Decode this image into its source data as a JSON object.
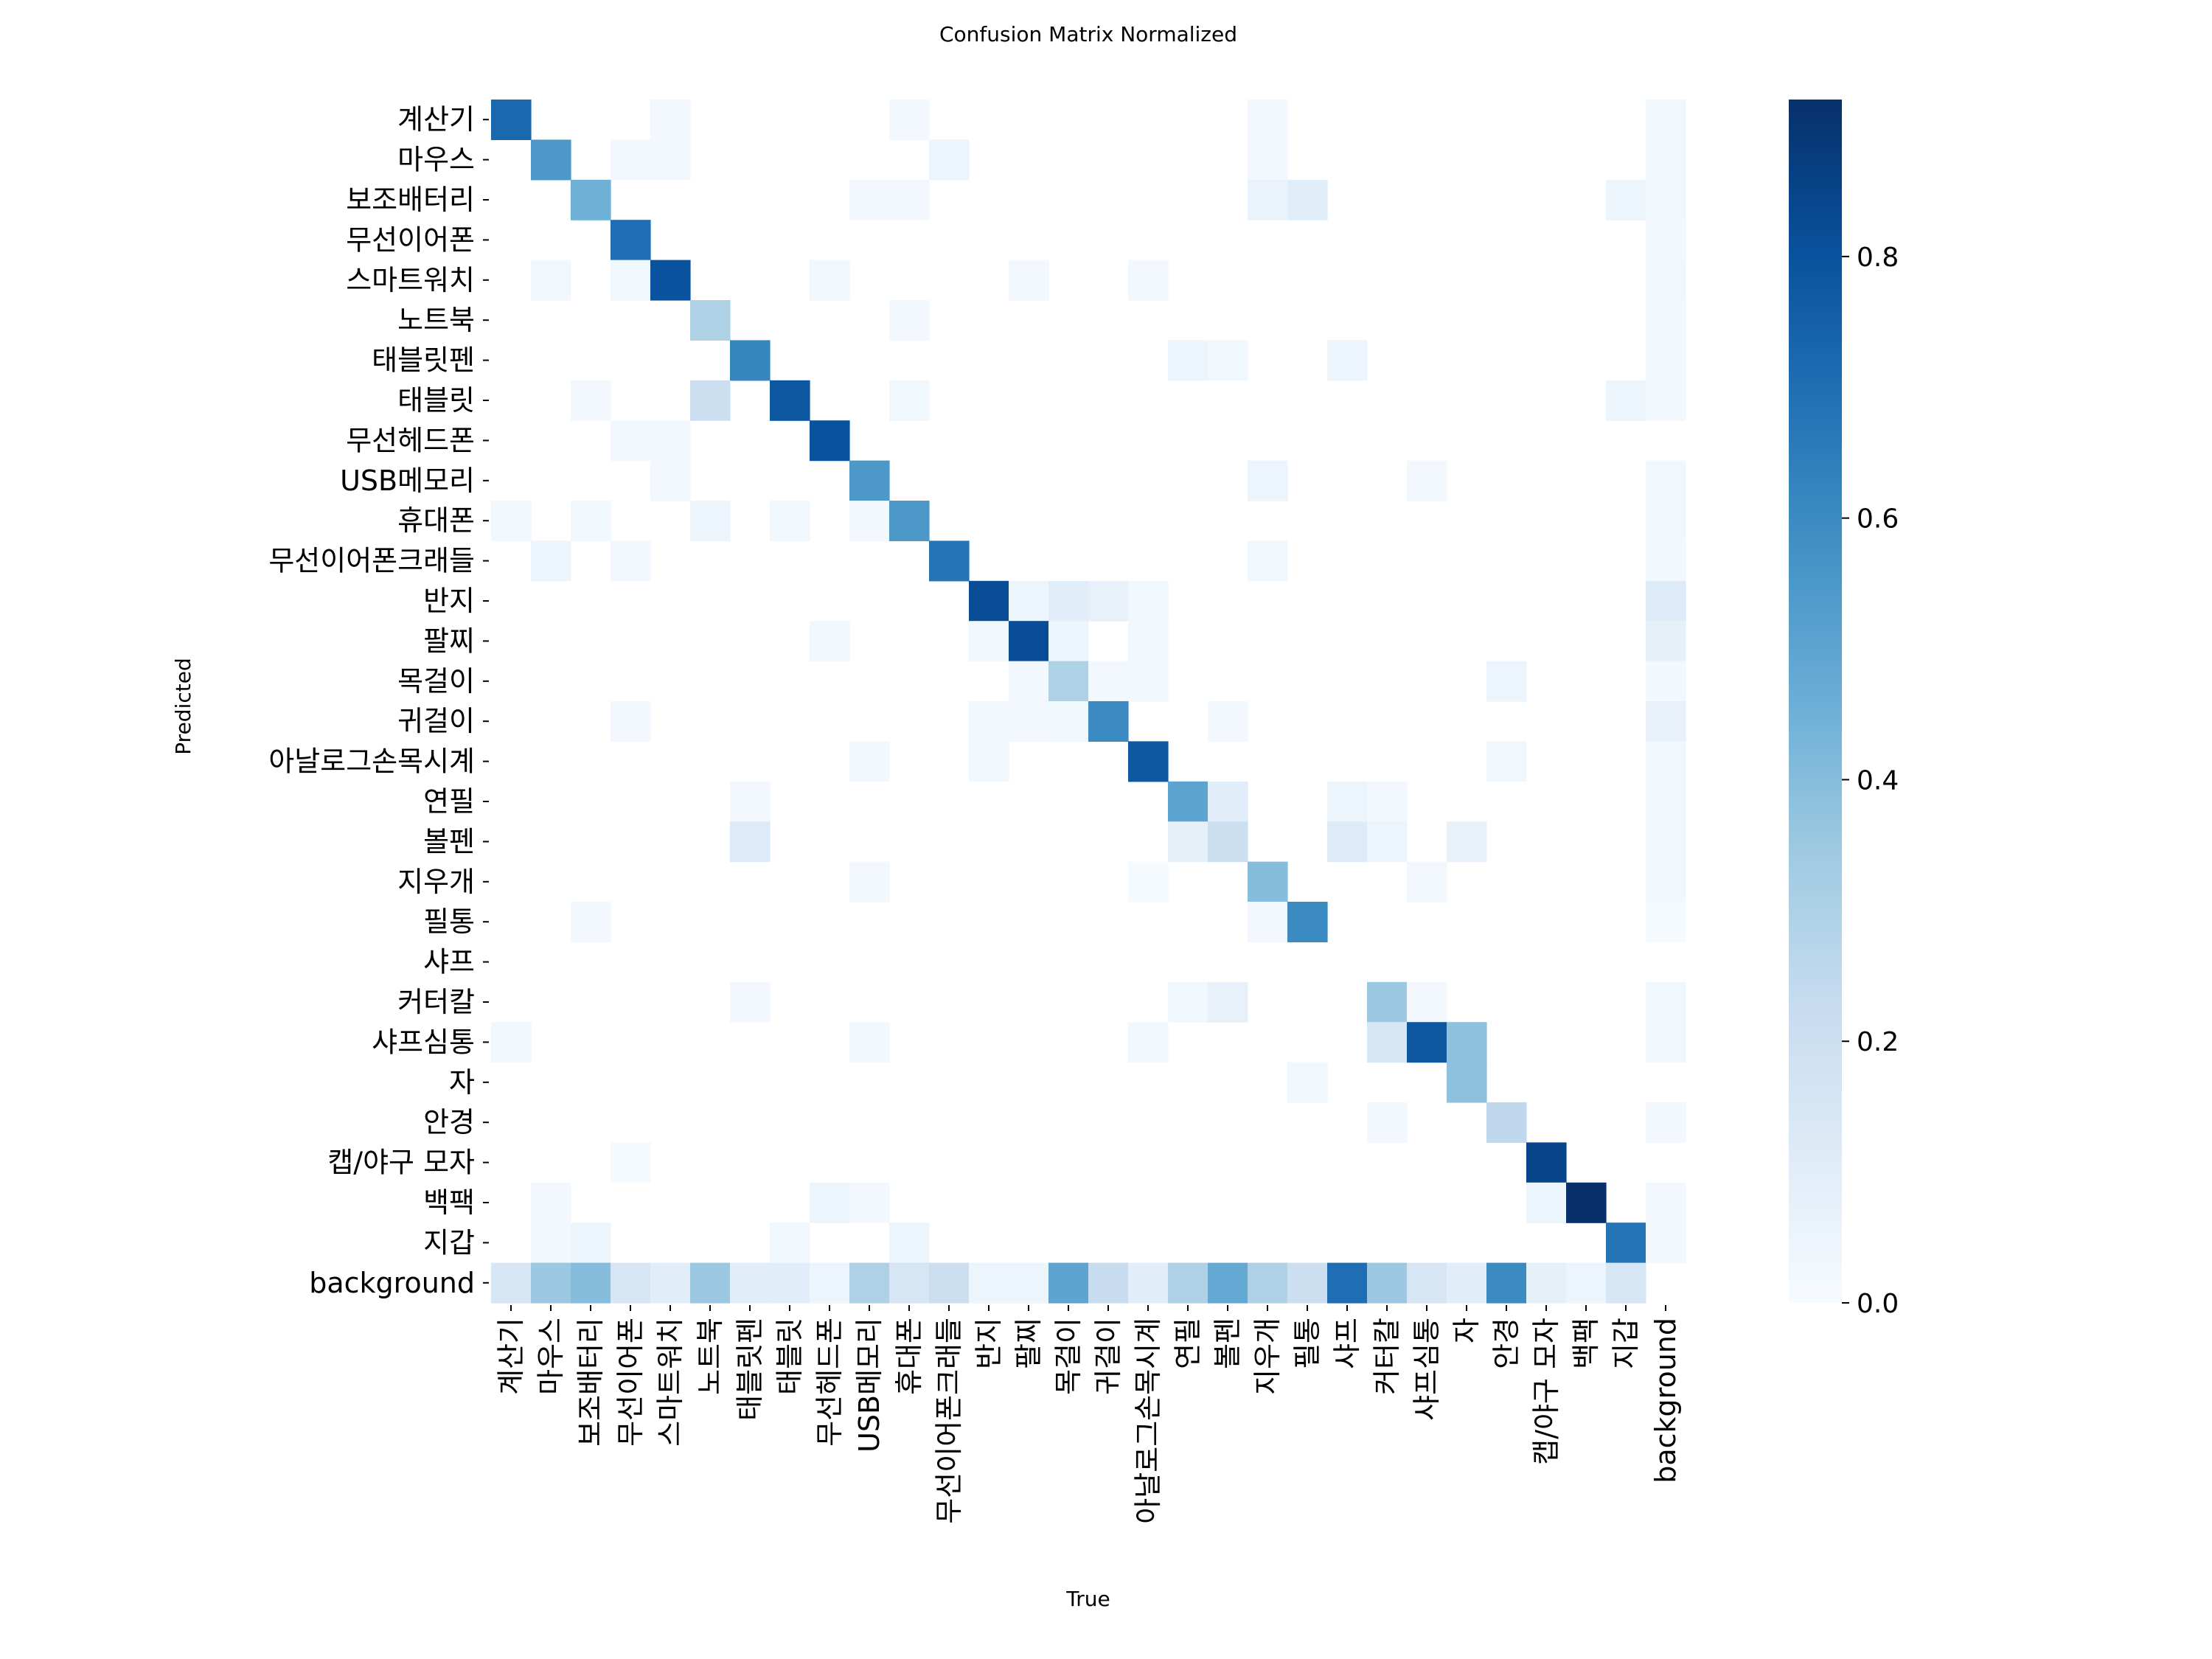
{
  "chart_data": {
    "type": "heatmap",
    "title": "Confusion Matrix Normalized",
    "xlabel": "True",
    "ylabel": "Predicted",
    "labels": [
      "계산기",
      "마우스",
      "보조배터리",
      "무선이어폰",
      "스마트워치",
      "노트북",
      "태블릿펜",
      "태블릿",
      "무선헤드폰",
      "USB메모리",
      "휴대폰",
      "무선이어폰크래들",
      "반지",
      "팔찌",
      "목걸이",
      "귀걸이",
      "아날로그손목시계",
      "연필",
      "볼펜",
      "지우개",
      "필통",
      "샤프",
      "커터칼",
      "샤프심통",
      "자",
      "안경",
      "캡/야구 모자",
      "백팩",
      "지갑",
      "background"
    ],
    "colorbar": {
      "min": 0.0,
      "max": 0.92,
      "ticks": [
        0.0,
        0.2,
        0.4,
        0.6,
        0.8
      ],
      "tick_labels": [
        "0.0",
        "0.2",
        "0.4",
        "0.6",
        "0.8"
      ]
    },
    "colormap": "Blues",
    "colors": {
      "low": "#f7fbff",
      "high": "#08306b"
    },
    "cells": [
      [
        0,
        0,
        0.72
      ],
      [
        0,
        4,
        0.02
      ],
      [
        0,
        10,
        0.02
      ],
      [
        0,
        19,
        0.02
      ],
      [
        0,
        29,
        0.03
      ],
      [
        1,
        1,
        0.55
      ],
      [
        1,
        3,
        0.02
      ],
      [
        1,
        4,
        0.02
      ],
      [
        1,
        11,
        0.05
      ],
      [
        1,
        19,
        0.02
      ],
      [
        1,
        29,
        0.03
      ],
      [
        2,
        2,
        0.45
      ],
      [
        2,
        9,
        0.02
      ],
      [
        2,
        10,
        0.02
      ],
      [
        2,
        19,
        0.06
      ],
      [
        2,
        20,
        0.1
      ],
      [
        2,
        28,
        0.05
      ],
      [
        2,
        29,
        0.03
      ],
      [
        3,
        3,
        0.7
      ],
      [
        3,
        29,
        0.02
      ],
      [
        4,
        1,
        0.03
      ],
      [
        4,
        3,
        0.03
      ],
      [
        4,
        4,
        0.8
      ],
      [
        4,
        8,
        0.03
      ],
      [
        4,
        13,
        0.02
      ],
      [
        4,
        16,
        0.02
      ],
      [
        4,
        29,
        0.03
      ],
      [
        5,
        5,
        0.3
      ],
      [
        5,
        10,
        0.02
      ],
      [
        5,
        29,
        0.02
      ],
      [
        6,
        6,
        0.62
      ],
      [
        6,
        17,
        0.05
      ],
      [
        6,
        18,
        0.03
      ],
      [
        6,
        21,
        0.05
      ],
      [
        6,
        29,
        0.02
      ],
      [
        7,
        2,
        0.02
      ],
      [
        7,
        5,
        0.2
      ],
      [
        7,
        7,
        0.78
      ],
      [
        7,
        10,
        0.03
      ],
      [
        7,
        28,
        0.05
      ],
      [
        7,
        29,
        0.02
      ],
      [
        8,
        3,
        0.02
      ],
      [
        8,
        4,
        0.02
      ],
      [
        8,
        8,
        0.8
      ],
      [
        9,
        4,
        0.02
      ],
      [
        9,
        9,
        0.55
      ],
      [
        9,
        19,
        0.05
      ],
      [
        9,
        23,
        0.02
      ],
      [
        9,
        29,
        0.03
      ],
      [
        10,
        0,
        0.03
      ],
      [
        10,
        2,
        0.03
      ],
      [
        10,
        5,
        0.05
      ],
      [
        10,
        7,
        0.03
      ],
      [
        10,
        9,
        0.02
      ],
      [
        10,
        10,
        0.55
      ],
      [
        10,
        29,
        0.03
      ],
      [
        11,
        1,
        0.05
      ],
      [
        11,
        3,
        0.02
      ],
      [
        11,
        11,
        0.68
      ],
      [
        11,
        19,
        0.03
      ],
      [
        11,
        29,
        0.02
      ],
      [
        12,
        12,
        0.82
      ],
      [
        12,
        13,
        0.05
      ],
      [
        12,
        14,
        0.1
      ],
      [
        12,
        15,
        0.07
      ],
      [
        12,
        16,
        0.03
      ],
      [
        12,
        29,
        0.12
      ],
      [
        13,
        8,
        0.03
      ],
      [
        13,
        12,
        0.03
      ],
      [
        13,
        13,
        0.82
      ],
      [
        13,
        14,
        0.05
      ],
      [
        13,
        16,
        0.02
      ],
      [
        13,
        29,
        0.08
      ],
      [
        14,
        13,
        0.02
      ],
      [
        14,
        14,
        0.3
      ],
      [
        14,
        15,
        0.02
      ],
      [
        14,
        16,
        0.02
      ],
      [
        14,
        25,
        0.05
      ],
      [
        14,
        29,
        0.02
      ],
      [
        15,
        3,
        0.02
      ],
      [
        15,
        12,
        0.03
      ],
      [
        15,
        13,
        0.02
      ],
      [
        15,
        14,
        0.03
      ],
      [
        15,
        15,
        0.6
      ],
      [
        15,
        18,
        0.02
      ],
      [
        15,
        29,
        0.07
      ],
      [
        16,
        9,
        0.02
      ],
      [
        16,
        12,
        0.03
      ],
      [
        16,
        16,
        0.78
      ],
      [
        16,
        25,
        0.03
      ],
      [
        16,
        29,
        0.03
      ],
      [
        17,
        6,
        0.02
      ],
      [
        17,
        17,
        0.5
      ],
      [
        17,
        18,
        0.1
      ],
      [
        17,
        21,
        0.05
      ],
      [
        17,
        22,
        0.02
      ],
      [
        17,
        29,
        0.03
      ],
      [
        18,
        6,
        0.12
      ],
      [
        18,
        17,
        0.08
      ],
      [
        18,
        18,
        0.2
      ],
      [
        18,
        21,
        0.12
      ],
      [
        18,
        22,
        0.05
      ],
      [
        18,
        24,
        0.07
      ],
      [
        18,
        29,
        0.03
      ],
      [
        19,
        9,
        0.02
      ],
      [
        19,
        16,
        0.01
      ],
      [
        19,
        19,
        0.4
      ],
      [
        19,
        23,
        0.02
      ],
      [
        19,
        29,
        0.03
      ],
      [
        20,
        2,
        0.02
      ],
      [
        20,
        19,
        0.02
      ],
      [
        20,
        20,
        0.6
      ],
      [
        20,
        29,
        0.01
      ],
      [
        22,
        6,
        0.02
      ],
      [
        22,
        17,
        0.03
      ],
      [
        22,
        18,
        0.07
      ],
      [
        22,
        22,
        0.35
      ],
      [
        22,
        23,
        0.02
      ],
      [
        22,
        29,
        0.03
      ],
      [
        23,
        0,
        0.03
      ],
      [
        23,
        9,
        0.02
      ],
      [
        23,
        16,
        0.02
      ],
      [
        23,
        22,
        0.15
      ],
      [
        23,
        23,
        0.78
      ],
      [
        23,
        24,
        0.38
      ],
      [
        23,
        29,
        0.03
      ],
      [
        24,
        20,
        0.03
      ],
      [
        24,
        24,
        0.38
      ],
      [
        25,
        22,
        0.02
      ],
      [
        25,
        25,
        0.25
      ],
      [
        25,
        29,
        0.02
      ],
      [
        26,
        3,
        0.01
      ],
      [
        26,
        26,
        0.85
      ],
      [
        27,
        1,
        0.02
      ],
      [
        27,
        8,
        0.05
      ],
      [
        27,
        9,
        0.02
      ],
      [
        27,
        26,
        0.05
      ],
      [
        27,
        27,
        0.92
      ],
      [
        27,
        29,
        0.02
      ],
      [
        28,
        1,
        0.02
      ],
      [
        28,
        2,
        0.05
      ],
      [
        28,
        7,
        0.03
      ],
      [
        28,
        10,
        0.05
      ],
      [
        28,
        28,
        0.68
      ],
      [
        28,
        29,
        0.02
      ],
      [
        29,
        0,
        0.15
      ],
      [
        29,
        1,
        0.35
      ],
      [
        29,
        2,
        0.4
      ],
      [
        29,
        3,
        0.15
      ],
      [
        29,
        4,
        0.1
      ],
      [
        29,
        5,
        0.35
      ],
      [
        29,
        6,
        0.1
      ],
      [
        29,
        7,
        0.1
      ],
      [
        29,
        8,
        0.05
      ],
      [
        29,
        9,
        0.3
      ],
      [
        29,
        10,
        0.15
      ],
      [
        29,
        11,
        0.2
      ],
      [
        29,
        12,
        0.05
      ],
      [
        29,
        13,
        0.05
      ],
      [
        29,
        14,
        0.5
      ],
      [
        29,
        15,
        0.22
      ],
      [
        29,
        16,
        0.1
      ],
      [
        29,
        17,
        0.3
      ],
      [
        29,
        18,
        0.48
      ],
      [
        29,
        19,
        0.3
      ],
      [
        29,
        20,
        0.2
      ],
      [
        29,
        21,
        0.7
      ],
      [
        29,
        22,
        0.35
      ],
      [
        29,
        23,
        0.15
      ],
      [
        29,
        24,
        0.1
      ],
      [
        29,
        25,
        0.6
      ],
      [
        29,
        26,
        0.08
      ],
      [
        29,
        27,
        0.05
      ],
      [
        29,
        28,
        0.15
      ]
    ]
  }
}
